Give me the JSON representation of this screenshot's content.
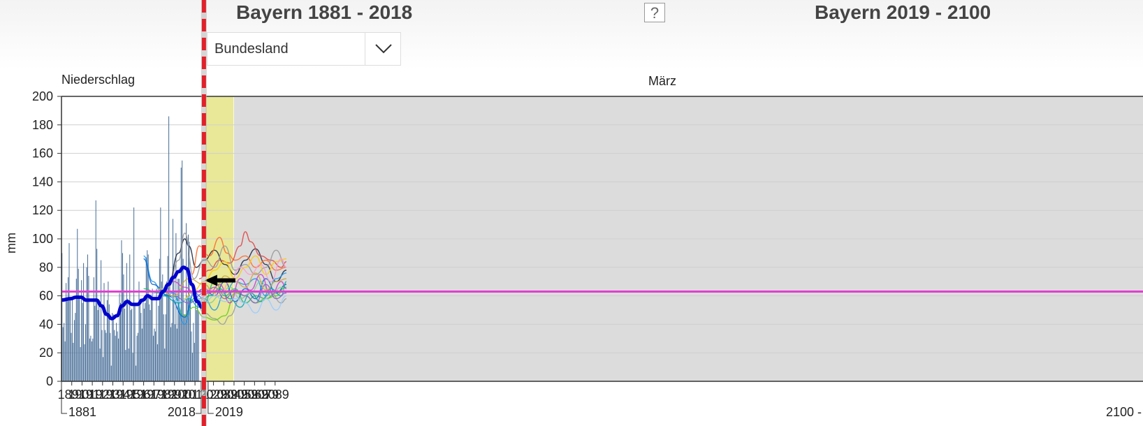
{
  "header": {
    "left_title": "Bayern 1881 - 2018",
    "right_title": "Bayern 2019 - 2100",
    "help_label": "?",
    "region_select": "Bundesland",
    "chevron_icon": "chevron-down-icon"
  },
  "chart_data": {
    "type": "bar",
    "parameter_label": "Niederschlag",
    "month_label": "März",
    "ylabel": "mm",
    "ylim": [
      0,
      200
    ],
    "yticks": [
      0,
      20,
      40,
      60,
      80,
      100,
      120,
      140,
      160,
      180,
      200
    ],
    "x_range": [
      1881,
      2100
    ],
    "xticks": [
      1891,
      1901,
      1911,
      1921,
      1931,
      1941,
      1951,
      1961,
      1971,
      1981,
      1991,
      2001,
      2011,
      2029,
      2039,
      2049,
      2059,
      2069,
      2079,
      2089
    ],
    "x_start_label": "1881",
    "x_mid_end_label": "2018",
    "x_future_start_label": "2019",
    "x_end_label": "2100 -",
    "reference_value": 63,
    "near_future_range": [
      2019,
      2049
    ],
    "far_future_range": [
      2050,
      2100
    ],
    "colors": {
      "bars": "#4a6f99",
      "smoothed": "#0000cc",
      "reference": "#e040d0",
      "separator": "#e0202a",
      "near_future_bg": "#e8e898",
      "far_future_bg": "#dcdcdc"
    },
    "bars": {
      "start_year": 1881,
      "values": [
        90,
        38,
        41,
        28,
        69,
        58,
        73,
        97,
        58,
        34,
        59,
        27,
        43,
        48,
        72,
        107,
        79,
        59,
        24,
        71,
        55,
        83,
        26,
        40,
        80,
        89,
        74,
        30,
        32,
        28,
        30,
        73,
        53,
        127,
        93,
        50,
        56,
        23,
        85,
        36,
        17,
        69,
        36,
        34,
        57,
        70,
        54,
        34,
        11,
        48,
        47,
        36,
        32,
        41,
        35,
        30,
        62,
        55,
        99,
        90,
        75,
        51,
        22,
        83,
        58,
        23,
        89,
        50,
        51,
        20,
        122,
        53,
        11,
        32,
        34,
        70,
        58,
        48,
        37,
        58,
        51,
        55,
        87,
        92,
        89,
        54,
        50,
        58,
        65,
        32,
        37,
        35,
        65,
        26,
        53,
        86,
        122,
        70,
        75,
        47,
        23,
        47,
        70,
        88,
        186,
        71,
        38,
        41,
        114,
        72,
        40,
        104,
        37,
        72,
        72,
        48,
        150,
        155,
        86,
        47,
        47,
        111,
        60,
        103,
        98,
        55,
        35,
        20,
        41,
        27,
        60,
        50,
        60,
        49
      ]
    },
    "smoothed": {
      "x": [
        1881,
        1890,
        1895,
        1900,
        1905,
        1910,
        1915,
        1920,
        1925,
        1930,
        1935,
        1940,
        1945,
        1950,
        1955,
        1960,
        1965,
        1970,
        1975,
        1980,
        1985,
        1990,
        1995,
        2000,
        2003,
        2008,
        2013,
        2018
      ],
      "y": [
        57,
        58,
        59,
        59,
        57,
        57,
        57,
        53,
        47,
        44,
        46,
        53,
        56,
        54,
        54,
        57,
        60,
        58,
        58,
        63,
        68,
        73,
        77,
        80,
        79,
        68,
        56,
        52
      ]
    },
    "projections": [
      {
        "color": "#1f2a44",
        "x": [
          1985,
          1995,
          2001,
          2005,
          2012,
          2020,
          2030,
          2040,
          2050,
          2060,
          2070,
          2080,
          2090,
          2100
        ],
        "y": [
          68,
          90,
          100,
          95,
          80,
          85,
          92,
          82,
          75,
          85,
          93,
          82,
          70,
          78
        ]
      },
      {
        "color": "#ff6a2a",
        "x": [
          2008,
          2015,
          2025,
          2035,
          2042,
          2050,
          2060,
          2070,
          2080,
          2090,
          2100
        ],
        "y": [
          75,
          95,
          88,
          101,
          90,
          85,
          88,
          80,
          85,
          78,
          80
        ]
      },
      {
        "color": "#e04848",
        "x": [
          2015,
          2025,
          2035,
          2045,
          2055,
          2060,
          2065,
          2075,
          2085,
          2095,
          2100
        ],
        "y": [
          72,
          78,
          85,
          83,
          95,
          105,
          98,
          88,
          85,
          80,
          84
        ]
      },
      {
        "color": "#999999",
        "x": [
          1985,
          1995,
          2001,
          2010,
          2020,
          2030,
          2040,
          2050,
          2060,
          2070,
          2080,
          2090,
          2100
        ],
        "y": [
          66,
          85,
          104,
          72,
          86,
          80,
          95,
          78,
          82,
          75,
          80,
          92,
          80
        ]
      },
      {
        "color": "#9aa0a0",
        "x": [
          2010,
          2020,
          2030,
          2038,
          2045,
          2055,
          2065,
          2075,
          2085,
          2095,
          2100
        ],
        "y": [
          60,
          48,
          44,
          40,
          46,
          58,
          62,
          56,
          62,
          55,
          58
        ]
      },
      {
        "color": "#22bb66",
        "x": [
          1961,
          1975,
          1990,
          2001,
          2010,
          2020,
          2030,
          2040,
          2050,
          2060,
          2070,
          2080,
          2090,
          2100
        ],
        "y": [
          65,
          62,
          60,
          45,
          58,
          55,
          70,
          60,
          65,
          55,
          60,
          58,
          62,
          66
        ]
      },
      {
        "color": "#66cc22",
        "x": [
          2000,
          2010,
          2020,
          2030,
          2040,
          2050,
          2060,
          2070,
          2080,
          2090,
          2100
        ],
        "y": [
          46,
          52,
          45,
          43,
          46,
          62,
          60,
          55,
          58,
          60,
          68
        ]
      },
      {
        "color": "#ffcc00",
        "x": [
          2000,
          2010,
          2020,
          2030,
          2040,
          2050,
          2060,
          2070,
          2080,
          2090,
          2100
        ],
        "y": [
          58,
          64,
          70,
          78,
          84,
          72,
          80,
          88,
          75,
          84,
          86
        ]
      },
      {
        "color": "#2299ee",
        "x": [
          1961,
          1970,
          1980,
          1990,
          2001,
          2010,
          2020,
          2030,
          2040,
          2050,
          2060,
          2070,
          2080,
          2090,
          2100
        ],
        "y": [
          88,
          70,
          60,
          62,
          40,
          62,
          58,
          50,
          62,
          70,
          68,
          72,
          60,
          72,
          76
        ]
      },
      {
        "color": "#1166cc",
        "x": [
          1961,
          1970,
          1985,
          2001,
          2010,
          2020,
          2030,
          2040,
          2050,
          2060,
          2070,
          2080,
          2090,
          2100
        ],
        "y": [
          86,
          68,
          60,
          45,
          62,
          65,
          60,
          70,
          56,
          65,
          58,
          72,
          62,
          68
        ]
      },
      {
        "color": "#cc44cc",
        "x": [
          1975,
          1990,
          2001,
          2015,
          2025,
          2035,
          2045,
          2055,
          2065,
          2075,
          2085,
          2095,
          2100
        ],
        "y": [
          60,
          70,
          66,
          58,
          62,
          68,
          55,
          72,
          64,
          75,
          60,
          70,
          65
        ]
      },
      {
        "color": "#ff99cc",
        "x": [
          2015,
          2025,
          2035,
          2045,
          2055,
          2065,
          2075,
          2085,
          2095,
          2100
        ],
        "y": [
          56,
          65,
          60,
          70,
          80,
          75,
          82,
          70,
          86,
          80
        ]
      },
      {
        "color": "#11aaaa",
        "x": [
          1980,
          1995,
          2005,
          2015,
          2025,
          2035,
          2045,
          2055,
          2065,
          2075,
          2085,
          2095,
          2100
        ],
        "y": [
          60,
          55,
          58,
          52,
          60,
          65,
          58,
          52,
          62,
          56,
          65,
          60,
          70
        ]
      },
      {
        "color": "#88cc99",
        "x": [
          2005,
          2015,
          2025,
          2035,
          2045,
          2055,
          2065,
          2075,
          2085,
          2095,
          2100
        ],
        "y": [
          62,
          58,
          55,
          60,
          66,
          58,
          62,
          70,
          60,
          66,
          62
        ]
      },
      {
        "color": "#99ccff",
        "x": [
          1965,
          1980,
          1995,
          2010,
          2020,
          2030,
          2040,
          2050,
          2060,
          2070,
          2080,
          2090,
          2100
        ],
        "y": [
          60,
          65,
          56,
          60,
          55,
          60,
          56,
          58,
          55,
          48,
          58,
          50,
          60
        ]
      },
      {
        "color": "#8866cc",
        "x": [
          1990,
          2005,
          2020,
          2030,
          2040,
          2050,
          2060,
          2070,
          2080,
          2090,
          2100
        ],
        "y": [
          60,
          55,
          62,
          66,
          58,
          64,
          60,
          55,
          68,
          58,
          62
        ]
      },
      {
        "color": "#ccaa44",
        "x": [
          1975,
          1990,
          2005,
          2020,
          2030,
          2040,
          2050,
          2060,
          2070,
          2080,
          2090,
          2100
        ],
        "y": [
          65,
          60,
          72,
          68,
          62,
          74,
          70,
          66,
          76,
          64,
          70,
          72
        ]
      }
    ]
  }
}
